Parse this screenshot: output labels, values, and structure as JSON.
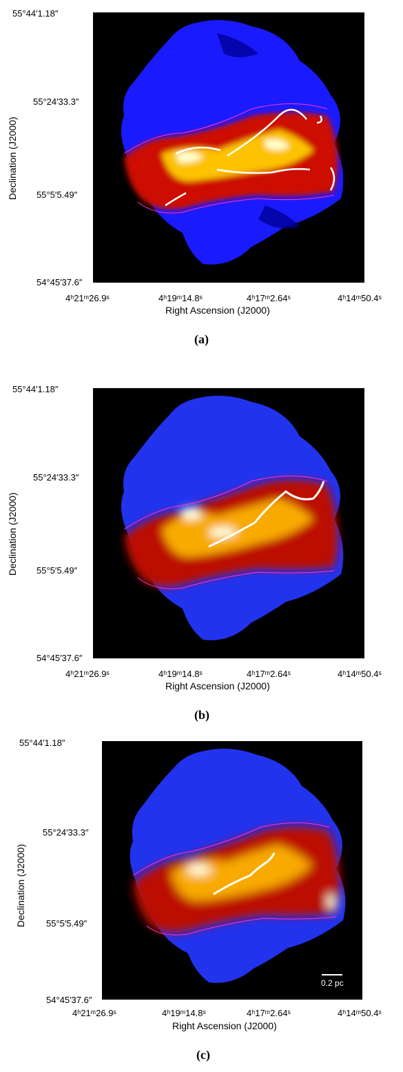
{
  "panels": [
    {
      "id": "a",
      "caption": "(a)",
      "xlabel": "Right Ascension (J2000)",
      "ylabel": "Declination (J2000)",
      "xticks": [
        "4ʰ21ᵐ26.9ˢ",
        "4ʰ19ᵐ14.8ˢ",
        "4ʰ17ᵐ2.64ˢ",
        "4ʰ14ᵐ50.4ˢ"
      ],
      "yticks": [
        "55°44′1.18″",
        "55°24′33.3″",
        "55°5′5.49″",
        "54°45′37.6″"
      ]
    },
    {
      "id": "b",
      "caption": "(b)",
      "xlabel": "Right Ascension (J2000)",
      "ylabel": "Declination (J2000)",
      "xticks": [
        "4ʰ21ᵐ26.9ˢ",
        "4ʰ19ᵐ14.8ˢ",
        "4ʰ17ᵐ2.64ˢ",
        "4ʰ14ᵐ50.4ˢ"
      ],
      "yticks": [
        "55°44′1.18″",
        "55°24′33.3″",
        "55°5′5.49″",
        "54°45′37.6″"
      ]
    },
    {
      "id": "c",
      "caption": "(c)",
      "xlabel": "Right Ascension (J2000)",
      "ylabel": "Declination (J2000)",
      "xticks": [
        "4ʰ21ᵐ26.9ˢ",
        "4ʰ19ᵐ14.8ˢ",
        "4ʰ17ᵐ2.64ˢ",
        "4ʰ14ᵐ50.4ˢ"
      ],
      "yticks": [
        "55°44′1.18″",
        "55°24′33.3″",
        "55°5′5.49″",
        "54°45′37.6″"
      ],
      "scalebar_label": "0.2 pc"
    }
  ],
  "colors": {
    "background": "#000000",
    "low": "#1a1aff",
    "mid": "#cc1100",
    "high": "#ffcc00",
    "peak": "#ffffcc",
    "contour": "#ff33cc",
    "filament": "#ffffff"
  }
}
